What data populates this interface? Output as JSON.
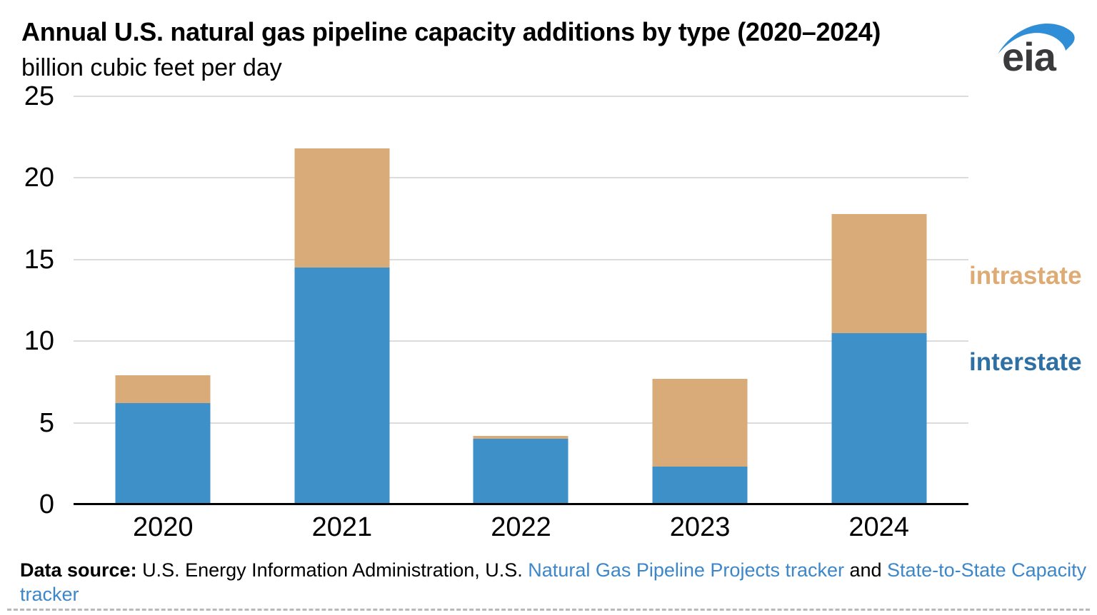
{
  "header": {
    "title": "Annual U.S. natural gas pipeline capacity additions by type (2020–2024)",
    "subtitle": "billion cubic feet per day",
    "logo_text": "eia"
  },
  "chart_data": {
    "type": "bar",
    "stacked": true,
    "title": "Annual U.S. natural gas pipeline capacity additions by type (2020–2024)",
    "ylabel": "billion cubic feet per day",
    "categories": [
      "2020",
      "2021",
      "2022",
      "2023",
      "2024"
    ],
    "series": [
      {
        "name": "interstate",
        "values": [
          6.2,
          14.5,
          4.0,
          2.3,
          10.5
        ]
      },
      {
        "name": "intrastate",
        "values": [
          1.7,
          7.3,
          0.2,
          5.4,
          7.3
        ]
      }
    ],
    "totals": [
      7.9,
      21.8,
      4.2,
      7.7,
      17.8
    ],
    "ylim": [
      0,
      25
    ],
    "yticks": [
      0,
      5,
      10,
      15,
      20,
      25
    ],
    "grid": "horizontal",
    "legend_position": "right",
    "legend": [
      {
        "label": "intrastate",
        "series": "intrastate"
      },
      {
        "label": "interstate",
        "series": "interstate"
      }
    ]
  },
  "footer": {
    "source_label": "Data source: ",
    "source_text": "U.S. Energy Information Administration, U.S. ",
    "link1": "Natural Gas Pipeline Projects tracker",
    "conjunction": " and ",
    "link2": "State-to-State Capacity tracker"
  },
  "colors": {
    "interstate_bar": "#3e91c8",
    "intrastate_bar": "#d8ab79",
    "interstate_label": "#2e6fa4",
    "intrastate_label": "#dfab74",
    "link": "#3d87c9",
    "gridline": "#dcdcdc",
    "axis_line": "#000000",
    "logo_swoosh": "#2f8ed5",
    "logo_text": "#3a3a3c",
    "text": "#000000"
  }
}
